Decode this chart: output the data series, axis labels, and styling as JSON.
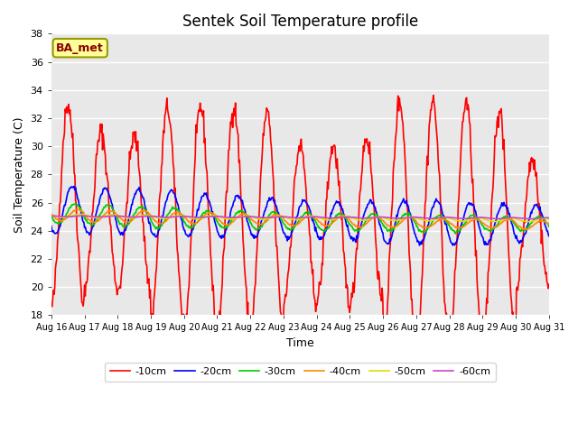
{
  "title": "Sentek Soil Temperature profile",
  "xlabel": "Time",
  "ylabel": "Soil Temperature (C)",
  "annotation": "BA_met",
  "ylim": [
    18,
    38
  ],
  "xlim": [
    0,
    360
  ],
  "x_tick_labels": [
    "Aug 16",
    "Aug 17",
    "Aug 18",
    "Aug 19",
    "Aug 20",
    "Aug 21",
    "Aug 22",
    "Aug 23",
    "Aug 24",
    "Aug 25",
    "Aug 26",
    "Aug 27",
    "Aug 28",
    "Aug 29",
    "Aug 30",
    "Aug 31"
  ],
  "x_tick_positions": [
    0,
    24,
    48,
    72,
    96,
    120,
    144,
    168,
    192,
    216,
    240,
    264,
    288,
    312,
    336,
    360
  ],
  "line_colors": [
    "#ff0000",
    "#0000ff",
    "#00cc00",
    "#ff8800",
    "#dddd00",
    "#cc44cc"
  ],
  "line_labels": [
    "-10cm",
    "-20cm",
    "-30cm",
    "-40cm",
    "-50cm",
    "-60cm"
  ],
  "background_color": "#e8e8e8",
  "fig_background": "#ffffff",
  "title_fontsize": 12,
  "n_points": 720,
  "amp_10cm_days": [
    7.2,
    5.5,
    5.5,
    7.5,
    7.8,
    7.8,
    7.5,
    5.5,
    5.5,
    6.0,
    8.5,
    8.5,
    8.5,
    8.0,
    4.5,
    4.2
  ],
  "mean_10cm_days": [
    25.8,
    25.5,
    25.2,
    25.2,
    25.0,
    25.0,
    24.8,
    24.5,
    24.5,
    24.6,
    24.7,
    24.7,
    24.7,
    24.5,
    24.5,
    24.4
  ],
  "amp_20cm_days": [
    1.7,
    1.6,
    1.6,
    1.6,
    1.5,
    1.5,
    1.4,
    1.3,
    1.3,
    1.4,
    1.5,
    1.5,
    1.5,
    1.4,
    1.3,
    1.2
  ],
  "mean_20cm_days": [
    25.5,
    25.4,
    25.3,
    25.2,
    25.1,
    25.0,
    24.9,
    24.8,
    24.7,
    24.7,
    24.6,
    24.6,
    24.5,
    24.5,
    24.5,
    24.4
  ],
  "amp_30cm_days": [
    0.7,
    0.7,
    0.7,
    0.7,
    0.6,
    0.6,
    0.6,
    0.6,
    0.6,
    0.6,
    0.6,
    0.6,
    0.6,
    0.5,
    0.5,
    0.5
  ],
  "mean_30cm_days": [
    25.2,
    25.1,
    25.0,
    24.9,
    24.8,
    24.8,
    24.7,
    24.7,
    24.6,
    24.6,
    24.6,
    24.5,
    24.5,
    24.5,
    24.5,
    24.4
  ],
  "amp_40cm_days": [
    0.4,
    0.4,
    0.4,
    0.4,
    0.4,
    0.4,
    0.35,
    0.35,
    0.35,
    0.35,
    0.35,
    0.3,
    0.3,
    0.3,
    0.3,
    0.3
  ],
  "mean_40cm_days": [
    25.1,
    25.0,
    25.0,
    24.9,
    24.9,
    24.8,
    24.8,
    24.7,
    24.7,
    24.6,
    24.6,
    24.5,
    24.5,
    24.5,
    24.4,
    24.4
  ],
  "amp_50cm_days": [
    0.12,
    0.12,
    0.12,
    0.12,
    0.12,
    0.12,
    0.12,
    0.12,
    0.12,
    0.12,
    0.12,
    0.12,
    0.12,
    0.12,
    0.12,
    0.12
  ],
  "mean_50cm_days": [
    25.05,
    25.03,
    25.0,
    24.98,
    24.96,
    24.94,
    24.92,
    24.9,
    24.88,
    24.86,
    24.84,
    24.82,
    24.8,
    24.78,
    24.76,
    24.74
  ],
  "amp_60cm_days": [
    0.04,
    0.04,
    0.04,
    0.04,
    0.04,
    0.04,
    0.04,
    0.04,
    0.04,
    0.04,
    0.04,
    0.04,
    0.04,
    0.04,
    0.04,
    0.04
  ],
  "mean_60cm_days": [
    25.02,
    25.01,
    25.0,
    24.99,
    24.98,
    24.97,
    24.96,
    24.95,
    24.94,
    24.93,
    24.92,
    24.91,
    24.9,
    24.89,
    24.88,
    24.87
  ],
  "phase_10cm": 6,
  "phase_20cm": 9,
  "phase_30cm": 11,
  "phase_40cm": 13,
  "phase_50cm": 15,
  "phase_60cm": 17
}
